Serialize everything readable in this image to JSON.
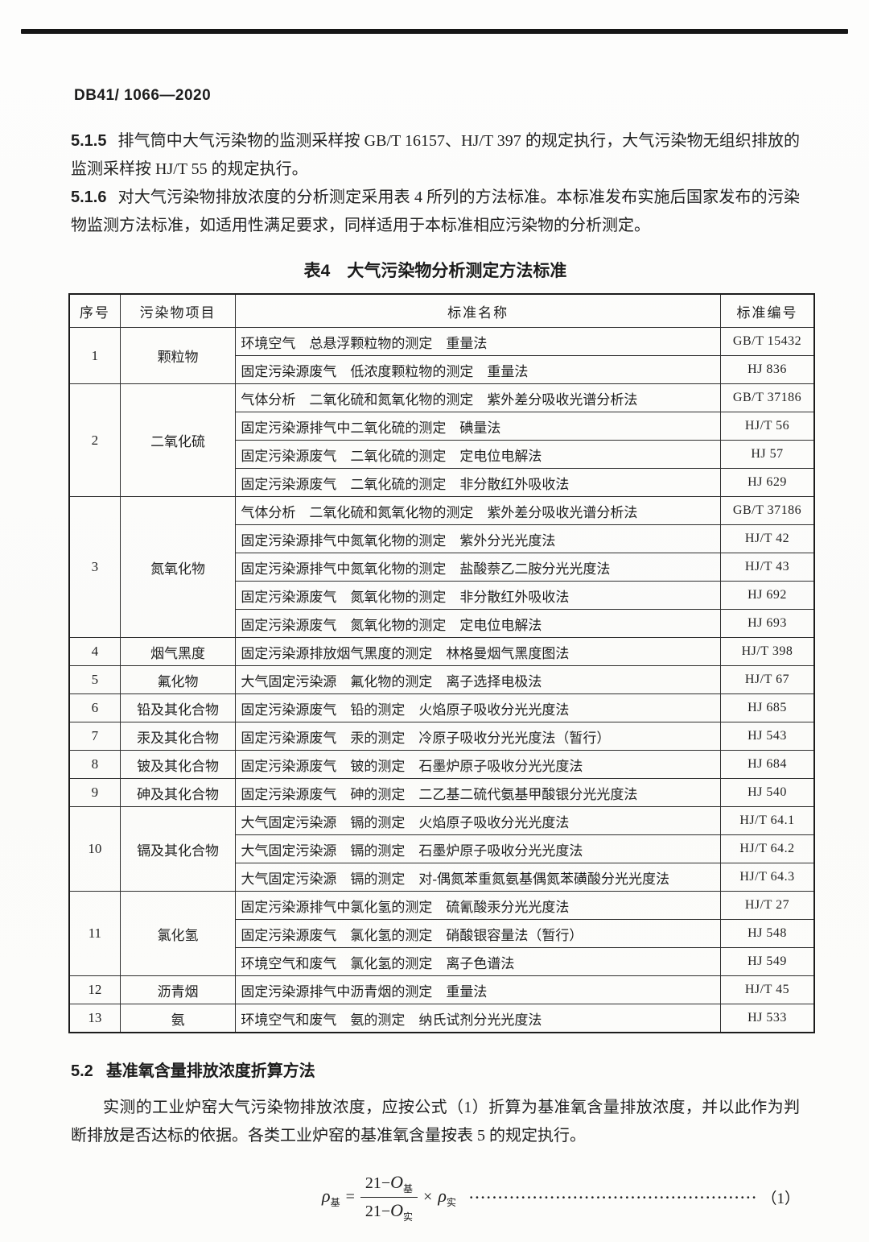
{
  "header": {
    "doc_number": "DB41/ 1066—2020"
  },
  "paragraphs": [
    {
      "num": "5.1.5",
      "text": "排气筒中大气污染物的监测采样按 GB/T 16157、HJ/T 397 的规定执行，大气污染物无组织排放的监测采样按 HJ/T 55 的规定执行。"
    },
    {
      "num": "5.1.6",
      "text": "对大气污染物排放浓度的分析测定采用表 4 所列的方法标准。本标准发布实施后国家发布的污染物监测方法标准，如适用性满足要求，同样适用于本标准相应污染物的分析测定。"
    }
  ],
  "table": {
    "title": "表4　大气污染物分析测定方法标准",
    "headers": [
      "序号",
      "污染物项目",
      "标准名称",
      "标准编号"
    ],
    "rows": [
      {
        "no": "1",
        "pollutant": "颗粒物",
        "methods": [
          {
            "name": "环境空气　总悬浮颗粒物的测定　重量法",
            "code": "GB/T 15432"
          },
          {
            "name": "固定污染源废气　低浓度颗粒物的测定　重量法",
            "code": "HJ 836"
          }
        ]
      },
      {
        "no": "2",
        "pollutant": "二氧化硫",
        "methods": [
          {
            "name": "气体分析　二氧化硫和氮氧化物的测定　紫外差分吸收光谱分析法",
            "code": "GB/T 37186"
          },
          {
            "name": "固定污染源排气中二氧化硫的测定　碘量法",
            "code": "HJ/T 56"
          },
          {
            "name": "固定污染源废气　二氧化硫的测定　定电位电解法",
            "code": "HJ 57"
          },
          {
            "name": "固定污染源废气　二氧化硫的测定　非分散红外吸收法",
            "code": "HJ 629"
          }
        ]
      },
      {
        "no": "3",
        "pollutant": "氮氧化物",
        "methods": [
          {
            "name": "气体分析　二氧化硫和氮氧化物的测定　紫外差分吸收光谱分析法",
            "code": "GB/T 37186"
          },
          {
            "name": "固定污染源排气中氮氧化物的测定　紫外分光光度法",
            "code": "HJ/T 42"
          },
          {
            "name": "固定污染源排气中氮氧化物的测定　盐酸萘乙二胺分光光度法",
            "code": "HJ/T 43"
          },
          {
            "name": "固定污染源废气　氮氧化物的测定　非分散红外吸收法",
            "code": "HJ 692"
          },
          {
            "name": "固定污染源废气　氮氧化物的测定　定电位电解法",
            "code": "HJ 693"
          }
        ]
      },
      {
        "no": "4",
        "pollutant": "烟气黑度",
        "methods": [
          {
            "name": "固定污染源排放烟气黑度的测定　林格曼烟气黑度图法",
            "code": "HJ/T 398"
          }
        ]
      },
      {
        "no": "5",
        "pollutant": "氟化物",
        "methods": [
          {
            "name": "大气固定污染源　氟化物的测定　离子选择电极法",
            "code": "HJ/T 67"
          }
        ]
      },
      {
        "no": "6",
        "pollutant": "铅及其化合物",
        "methods": [
          {
            "name": "固定污染源废气　铅的测定　火焰原子吸收分光光度法",
            "code": "HJ 685"
          }
        ]
      },
      {
        "no": "7",
        "pollutant": "汞及其化合物",
        "methods": [
          {
            "name": "固定污染源废气　汞的测定　冷原子吸收分光光度法（暂行）",
            "code": "HJ 543"
          }
        ]
      },
      {
        "no": "8",
        "pollutant": "铍及其化合物",
        "methods": [
          {
            "name": "固定污染源废气　铍的测定　石墨炉原子吸收分光光度法",
            "code": "HJ 684"
          }
        ]
      },
      {
        "no": "9",
        "pollutant": "砷及其化合物",
        "methods": [
          {
            "name": "固定污染源废气　砷的测定　二乙基二硫代氨基甲酸银分光光度法",
            "code": "HJ 540"
          }
        ]
      },
      {
        "no": "10",
        "pollutant": "镉及其化合物",
        "methods": [
          {
            "name": "大气固定污染源　镉的测定　火焰原子吸收分光光度法",
            "code": "HJ/T 64.1"
          },
          {
            "name": "大气固定污染源　镉的测定　石墨炉原子吸收分光光度法",
            "code": "HJ/T 64.2"
          },
          {
            "name": "大气固定污染源　镉的测定　对-偶氮苯重氮氨基偶氮苯磺酸分光光度法",
            "code": "HJ/T 64.3"
          }
        ]
      },
      {
        "no": "11",
        "pollutant": "氯化氢",
        "methods": [
          {
            "name": "固定污染源排气中氯化氢的测定　硫氰酸汞分光光度法",
            "code": "HJ/T 27"
          },
          {
            "name": "固定污染源废气　氯化氢的测定　硝酸银容量法（暂行）",
            "code": "HJ 548"
          },
          {
            "name": "环境空气和废气　氯化氢的测定　离子色谱法",
            "code": "HJ 549"
          }
        ]
      },
      {
        "no": "12",
        "pollutant": "沥青烟",
        "methods": [
          {
            "name": "固定污染源排气中沥青烟的测定　重量法",
            "code": "HJ/T 45"
          }
        ]
      },
      {
        "no": "13",
        "pollutant": "氨",
        "methods": [
          {
            "name": "环境空气和废气　氨的测定　纳氏试剂分光光度法",
            "code": "HJ 533"
          }
        ]
      }
    ]
  },
  "section": {
    "num": "5.2",
    "title": "基准氧含量排放浓度折算方法"
  },
  "body_paragraph": "实测的工业炉窑大气污染物排放浓度，应按公式（1）折算为基准氧含量排放浓度，并以此作为判断排放是否达标的依据。各类工业炉窑的基准氧含量按表 5 的规定执行。",
  "formula": {
    "rho": "ρ",
    "base_sub": "基",
    "actual_sub": "实",
    "equals": "=",
    "minuend": "21−",
    "oxygen": "O",
    "times": "×",
    "dots": "····················································································",
    "eq_number": "（1）"
  }
}
